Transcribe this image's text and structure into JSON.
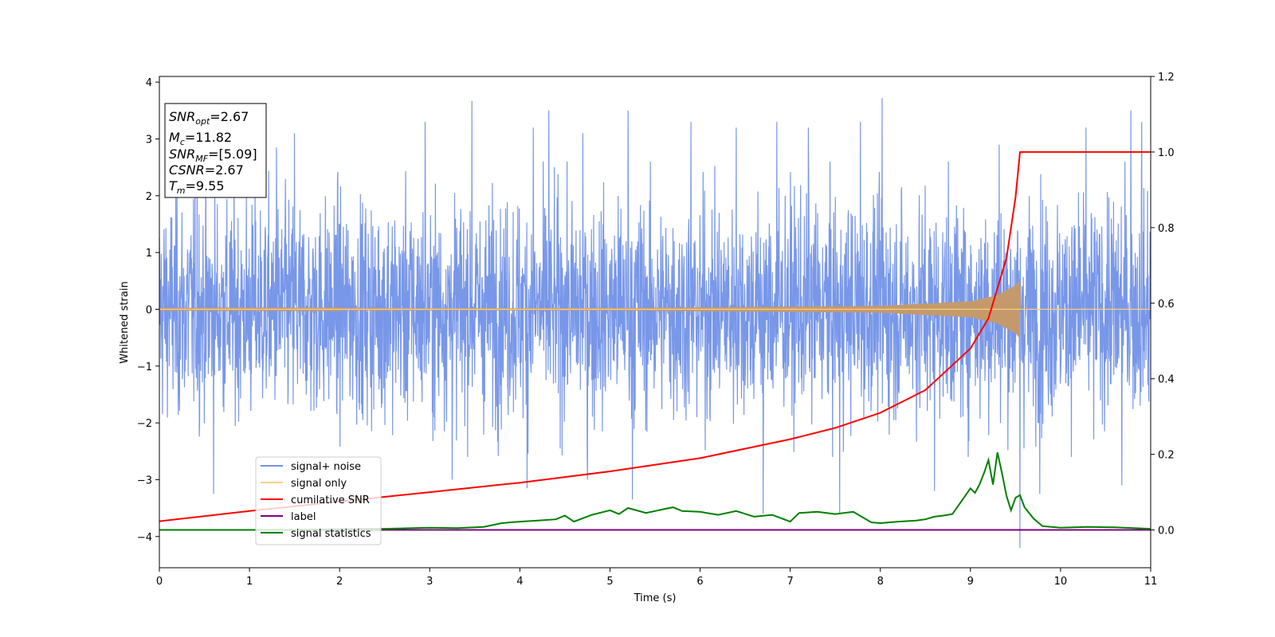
{
  "chart_data": {
    "type": "line",
    "xlabel": "Time (s)",
    "ylabel": "Whitened strain",
    "xlim": [
      0,
      11
    ],
    "ylim_left": [
      -4.55,
      4.1
    ],
    "ylim_right": [
      -0.1,
      1.2
    ],
    "xticks": [
      "0",
      "1",
      "2",
      "3",
      "4",
      "5",
      "6",
      "7",
      "8",
      "9",
      "10",
      "11"
    ],
    "yticks_left": [
      "4",
      "3",
      "2",
      "1",
      "0",
      "−1",
      "−2",
      "−3",
      "−4"
    ],
    "yticks_right": [
      "1.2",
      "1.0",
      "0.8",
      "0.6",
      "0.4",
      "0.2",
      "0.0"
    ],
    "info_box": {
      "snr_opt": {
        "base": "SNR",
        "sub": "opt",
        "value": "=2.67"
      },
      "mc": {
        "base": "M",
        "sub": "c",
        "value": "=11.82"
      },
      "snr_mf": {
        "base": "SNR",
        "sub": "MF",
        "value": "=[5.09]"
      },
      "csnr": {
        "base": "CSNR",
        "sub": "",
        "value": "=2.67"
      },
      "tm": {
        "base": "T",
        "sub": "m",
        "value": "=9.55"
      }
    },
    "legend": [
      {
        "label": "signal+ noise",
        "color": "#7191e8"
      },
      {
        "label": "signal only",
        "color": "#ffd27f"
      },
      {
        "label": "cumilative SNR",
        "color": "#ff0000"
      },
      {
        "label": "label",
        "color": "#800080"
      },
      {
        "label": "signal statistics",
        "color": "#008000"
      }
    ],
    "series": [
      {
        "name": "signal+ noise",
        "axis": "left",
        "color": "#7191e8",
        "description": "whitened strain noise, roughly gaussian with envelope about ±2.3 and spikes up to about ±3.7",
        "spikes": [
          [
            0.6,
            -3.25
          ],
          [
            0.42,
            2.8
          ],
          [
            1.3,
            2.85
          ],
          [
            1.5,
            3.1
          ],
          [
            2.95,
            3.3
          ],
          [
            3.47,
            3.67
          ],
          [
            3.25,
            -3.0
          ],
          [
            4.08,
            -3.15
          ],
          [
            4.15,
            3.2
          ],
          [
            4.32,
            3.5
          ],
          [
            4.7,
            3.1
          ],
          [
            4.75,
            -3.0
          ],
          [
            5.2,
            3.5
          ],
          [
            5.25,
            -3.35
          ],
          [
            5.9,
            3.3
          ],
          [
            6.4,
            3.2
          ],
          [
            6.7,
            -3.6
          ],
          [
            6.85,
            3.3
          ],
          [
            7.2,
            3.2
          ],
          [
            7.55,
            -3.6
          ],
          [
            7.78,
            3.3
          ],
          [
            8.02,
            3.72
          ],
          [
            8.6,
            -3.2
          ],
          [
            9.32,
            2.9
          ],
          [
            9.55,
            -4.2
          ],
          [
            9.77,
            -3.25
          ],
          [
            10.28,
            3.2
          ],
          [
            10.68,
            -3.1
          ],
          [
            10.78,
            3.5
          ],
          [
            10.9,
            3.3
          ]
        ]
      },
      {
        "name": "signal only",
        "axis": "left",
        "color": "#ffd27f",
        "description": "chirp, amplitude ~0.05 growing to ~0.52 at merger t=9.55, zero after",
        "amplitude_points": [
          [
            0,
            0.01
          ],
          [
            5,
            0.02
          ],
          [
            8,
            0.06
          ],
          [
            9,
            0.14
          ],
          [
            9.3,
            0.25
          ],
          [
            9.5,
            0.42
          ],
          [
            9.55,
            0.52
          ]
        ]
      },
      {
        "name": "cumilative SNR",
        "axis": "right",
        "color": "#ff0000",
        "x": [
          0,
          1,
          2,
          3,
          4,
          5,
          6,
          7,
          7.5,
          8,
          8.5,
          9,
          9.2,
          9.4,
          9.5,
          9.55,
          11
        ],
        "y": [
          0.023,
          0.05,
          0.075,
          0.1,
          0.125,
          0.155,
          0.19,
          0.24,
          0.27,
          0.31,
          0.37,
          0.48,
          0.56,
          0.72,
          0.88,
          1.0,
          1.0
        ]
      },
      {
        "name": "label",
        "axis": "right",
        "color": "#800080",
        "x": [
          0,
          11
        ],
        "y": [
          0.0,
          0.0
        ]
      },
      {
        "name": "signal statistics",
        "axis": "right",
        "color": "#008000",
        "x": [
          0,
          0.5,
          1,
          1.5,
          2,
          2.5,
          3,
          3.3,
          3.6,
          3.8,
          4,
          4.2,
          4.4,
          4.5,
          4.6,
          4.8,
          5.0,
          5.1,
          5.2,
          5.4,
          5.5,
          5.6,
          5.7,
          5.8,
          6.0,
          6.2,
          6.4,
          6.6,
          6.8,
          7.0,
          7.1,
          7.3,
          7.5,
          7.7,
          7.9,
          8.0,
          8.2,
          8.4,
          8.5,
          8.6,
          8.7,
          8.8,
          9.0,
          9.05,
          9.1,
          9.15,
          9.2,
          9.25,
          9.3,
          9.35,
          9.4,
          9.45,
          9.5,
          9.55,
          9.6,
          9.7,
          9.8,
          10.0,
          10.3,
          10.6,
          11.0
        ],
        "y": [
          0.0,
          0.0,
          0.0,
          0.0,
          0.002,
          0.003,
          0.006,
          0.005,
          0.008,
          0.018,
          0.022,
          0.025,
          0.028,
          0.038,
          0.022,
          0.04,
          0.052,
          0.042,
          0.058,
          0.045,
          0.05,
          0.055,
          0.06,
          0.05,
          0.048,
          0.04,
          0.05,
          0.035,
          0.04,
          0.022,
          0.045,
          0.048,
          0.042,
          0.048,
          0.02,
          0.018,
          0.022,
          0.025,
          0.028,
          0.035,
          0.038,
          0.042,
          0.11,
          0.098,
          0.12,
          0.15,
          0.185,
          0.12,
          0.205,
          0.15,
          0.09,
          0.052,
          0.085,
          0.092,
          0.06,
          0.03,
          0.01,
          0.006,
          0.008,
          0.007,
          0.003
        ]
      }
    ]
  }
}
